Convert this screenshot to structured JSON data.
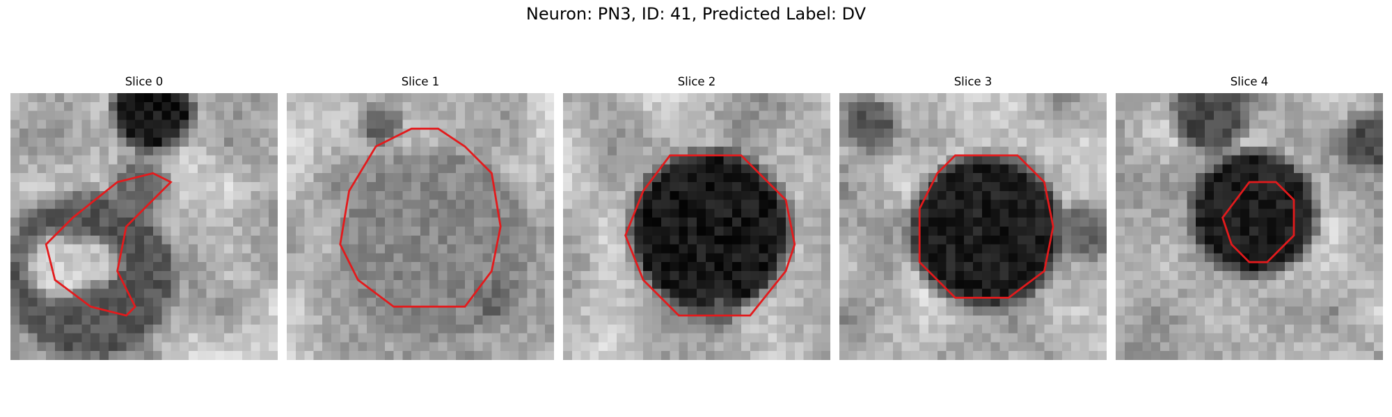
{
  "figure": {
    "title": "Neuron: PN3, ID: 41, Predicted Label: DV"
  },
  "colors": {
    "contour": "#e31a1c",
    "background": "#ffffff"
  },
  "panels": [
    {
      "label": "Slice 0",
      "blobs": [
        {
          "cx": 15.5,
          "cy": 1.5,
          "r": 4.5,
          "v": 0.1
        },
        {
          "cx": 8.5,
          "cy": 20,
          "r": 9.5,
          "v": 0.35
        },
        {
          "cx": 5,
          "cy": 19,
          "r": 3.5,
          "v": 0.85
        },
        {
          "cx": 9,
          "cy": 18.5,
          "r": 2.5,
          "v": 0.8
        },
        {
          "cx": 14,
          "cy": 10,
          "r": 3,
          "v": 0.45
        }
      ],
      "contour": [
        [
          12,
          10
        ],
        [
          16,
          9
        ],
        [
          18,
          10
        ],
        [
          15,
          13
        ],
        [
          13,
          15
        ],
        [
          12,
          20
        ],
        [
          14,
          24
        ],
        [
          13,
          25
        ],
        [
          9,
          24
        ],
        [
          5,
          21
        ],
        [
          4,
          17
        ],
        [
          7,
          14
        ]
      ]
    },
    {
      "label": "Slice 1",
      "blobs": [
        {
          "cx": 16,
          "cy": 16.5,
          "r": 5,
          "v": 0.1
        },
        {
          "cx": 16,
          "cy": 16.5,
          "r": 11,
          "v": 0.55
        },
        {
          "cx": 10,
          "cy": 3,
          "r": 2,
          "v": 0.35
        },
        {
          "cx": 23,
          "cy": 23,
          "r": 2,
          "v": 0.4
        }
      ],
      "contour": [
        [
          10,
          6
        ],
        [
          14,
          4
        ],
        [
          17,
          4
        ],
        [
          20,
          6
        ],
        [
          23,
          9
        ],
        [
          24,
          15
        ],
        [
          23,
          20
        ],
        [
          20,
          24
        ],
        [
          12,
          24
        ],
        [
          8,
          21
        ],
        [
          6,
          17
        ],
        [
          7,
          11
        ]
      ]
    },
    {
      "label": "Slice 2",
      "blobs": [
        {
          "cx": 16,
          "cy": 15,
          "r": 9,
          "v": 0.1
        },
        {
          "cx": 17,
          "cy": 24,
          "r": 2,
          "v": 0.3
        }
      ],
      "contour": [
        [
          12,
          7
        ],
        [
          20,
          7
        ],
        [
          25,
          12
        ],
        [
          26,
          17
        ],
        [
          25,
          20
        ],
        [
          21,
          25
        ],
        [
          13,
          25
        ],
        [
          9,
          21
        ],
        [
          7,
          16
        ],
        [
          9,
          11
        ]
      ]
    },
    {
      "label": "Slice 3",
      "blobs": [
        {
          "cx": 16,
          "cy": 15,
          "r": 8.5,
          "v": 0.12
        },
        {
          "cx": 3,
          "cy": 3,
          "r": 3,
          "v": 0.35
        },
        {
          "cx": 27,
          "cy": 15,
          "r": 3,
          "v": 0.4
        }
      ],
      "contour": [
        [
          13,
          7
        ],
        [
          20,
          7
        ],
        [
          23,
          10
        ],
        [
          24,
          15
        ],
        [
          23,
          20
        ],
        [
          19,
          23
        ],
        [
          13,
          23
        ],
        [
          9,
          19
        ],
        [
          9,
          13
        ],
        [
          11,
          9
        ]
      ]
    },
    {
      "label": "Slice 4",
      "blobs": [
        {
          "cx": 15,
          "cy": 13,
          "r": 7,
          "v": 0.12
        },
        {
          "cx": 10,
          "cy": 2,
          "r": 4,
          "v": 0.3
        },
        {
          "cx": 28,
          "cy": 5,
          "r": 3,
          "v": 0.3
        }
      ],
      "contour": [
        [
          15,
          10
        ],
        [
          18,
          10
        ],
        [
          20,
          12
        ],
        [
          20,
          16
        ],
        [
          17,
          19
        ],
        [
          15,
          19
        ],
        [
          13,
          17
        ],
        [
          12,
          14
        ]
      ]
    }
  ]
}
